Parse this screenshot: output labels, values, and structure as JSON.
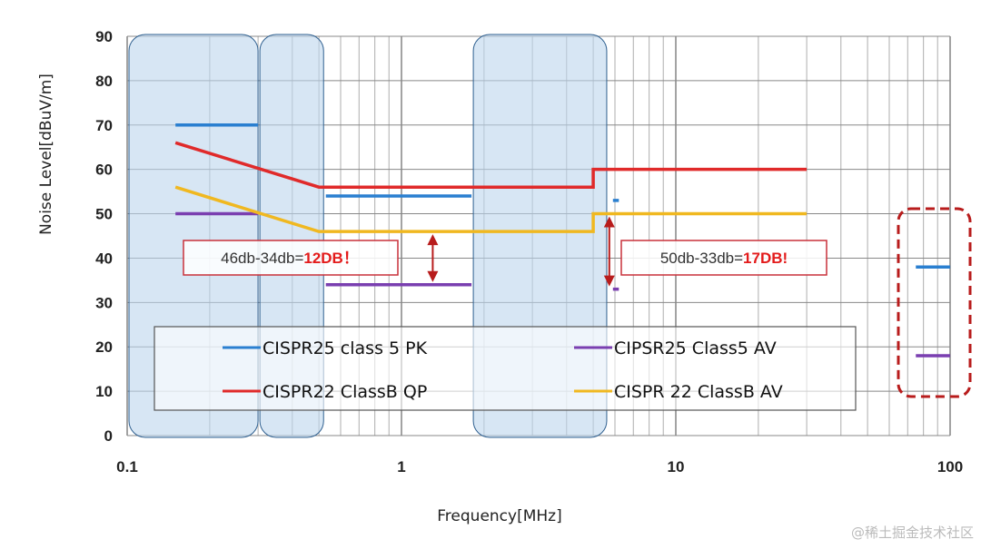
{
  "chart_data": {
    "type": "line",
    "xlabel": "Frequency[MHz]",
    "ylabel": "Noise Level[dBuV/m]",
    "xscale": "log",
    "xlim": [
      0.1,
      100
    ],
    "ylim": [
      0,
      90
    ],
    "xticks": [
      "0.1",
      "1",
      "10",
      "100"
    ],
    "yticks": [
      "0",
      "10",
      "20",
      "30",
      "40",
      "50",
      "60",
      "70",
      "80",
      "90"
    ],
    "grid": true,
    "legend_position": "bottom-center",
    "series": [
      {
        "name": "CISPR25 class 5 PK",
        "color": "#2a7fd0",
        "segments": [
          [
            [
              0.15,
              70
            ],
            [
              0.3,
              70
            ]
          ],
          [
            [
              0.53,
              54
            ],
            [
              1.8,
              54
            ]
          ],
          [
            [
              5.9,
              53
            ],
            [
              6.2,
              53
            ]
          ],
          [
            [
              75,
              38
            ],
            [
              100,
              38
            ]
          ]
        ]
      },
      {
        "name": "CIPSR25 Class5 AV",
        "color": "#7a3fb0",
        "segments": [
          [
            [
              0.15,
              50
            ],
            [
              0.3,
              50
            ]
          ],
          [
            [
              0.53,
              34
            ],
            [
              1.8,
              34
            ]
          ],
          [
            [
              5.9,
              33
            ],
            [
              6.2,
              33
            ]
          ],
          [
            [
              75,
              18
            ],
            [
              100,
              18
            ]
          ]
        ]
      },
      {
        "name": "CISPR22 ClassB QP",
        "color": "#e02a2a",
        "segments": [
          [
            [
              0.15,
              66
            ],
            [
              0.5,
              56
            ],
            [
              5,
              56
            ],
            [
              5,
              60
            ],
            [
              30,
              60
            ]
          ]
        ]
      },
      {
        "name": "CISPR 22 ClassB AV",
        "color": "#f0b820",
        "segments": [
          [
            [
              0.15,
              56
            ],
            [
              0.5,
              46
            ],
            [
              5,
              46
            ],
            [
              5,
              50
            ],
            [
              30,
              50
            ]
          ]
        ]
      }
    ],
    "highlight_bands_mhz": [
      [
        0.1,
        0.3
      ],
      [
        0.3,
        0.52
      ],
      [
        1.8,
        5.6
      ]
    ],
    "annotations": [
      {
        "text": "46db-34db=",
        "emphasis": "12DB！",
        "arrow_at_mhz": 1.3,
        "from": 46,
        "to": 34
      },
      {
        "text": "50db-33db=",
        "emphasis": "17DB!",
        "arrow_at_mhz": 5.9,
        "from": 50,
        "to": 33
      }
    ]
  },
  "watermark": "@稀土掘金技术社区"
}
